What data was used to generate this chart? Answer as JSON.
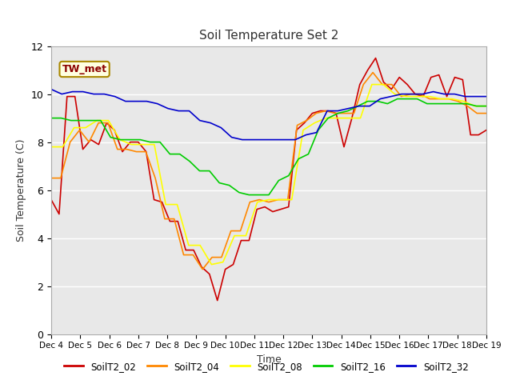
{
  "title": "Soil Temperature Set 2",
  "xlabel": "Time",
  "ylabel": "Soil Temperature (C)",
  "annotation": "TW_met",
  "ylim": [
    0,
    12
  ],
  "background_color": "#e8e8e8",
  "figure_color": "#ffffff",
  "series_colors": {
    "SoilT2_02": "#cc0000",
    "SoilT2_04": "#ff8800",
    "SoilT2_08": "#ffff00",
    "SoilT2_16": "#00cc00",
    "SoilT2_32": "#0000cc"
  },
  "x_ticks": [
    "Dec 4",
    "Dec 5",
    "Dec 6",
    "Dec 7",
    "Dec 8",
    "Dec 9",
    "Dec 10",
    "Dec 11",
    "Dec 12",
    "Dec 13",
    "Dec 14",
    "Dec 15",
    "Dec 16",
    "Dec 17",
    "Dec 18",
    "Dec 19"
  ],
  "series": {
    "SoilT2_02": [
      5.6,
      5.0,
      9.9,
      9.9,
      7.7,
      8.1,
      7.9,
      8.8,
      8.5,
      7.6,
      8.0,
      8.0,
      7.6,
      5.6,
      5.5,
      4.7,
      4.7,
      3.5,
      3.5,
      2.8,
      2.5,
      1.4,
      2.7,
      2.9,
      3.9,
      3.9,
      5.2,
      5.3,
      5.1,
      5.2,
      5.3,
      8.5,
      8.8,
      9.2,
      9.3,
      9.3,
      9.2,
      7.8,
      9.0,
      10.4,
      11.0,
      11.5,
      10.5,
      10.2,
      10.7,
      10.4,
      10.0,
      9.9,
      10.7,
      10.8,
      9.9,
      10.7,
      10.6,
      8.3,
      8.3,
      8.5
    ],
    "SoilT2_04": [
      6.5,
      6.5,
      8.0,
      8.5,
      8.0,
      8.8,
      8.8,
      7.7,
      7.7,
      7.6,
      7.6,
      6.5,
      4.8,
      4.8,
      3.3,
      3.3,
      2.7,
      3.2,
      3.2,
      4.3,
      4.3,
      5.5,
      5.6,
      5.5,
      5.6,
      5.6,
      8.7,
      8.9,
      9.2,
      9.3,
      9.2,
      9.2,
      9.2,
      10.4,
      10.9,
      10.4,
      10.4,
      9.9,
      10.0,
      10.0,
      9.8,
      9.8,
      9.8,
      9.7,
      9.5,
      9.2,
      9.2
    ],
    "SoilT2_08": [
      7.8,
      7.8,
      8.6,
      8.6,
      8.9,
      8.9,
      8.1,
      7.9,
      7.9,
      7.9,
      5.4,
      5.4,
      3.7,
      3.7,
      2.9,
      3.0,
      4.1,
      4.1,
      5.5,
      5.6,
      5.6,
      5.6,
      8.5,
      8.8,
      9.0,
      9.0,
      9.0,
      9.0,
      10.4,
      10.4,
      10.0,
      9.9,
      9.9,
      9.9,
      9.8,
      9.8,
      9.7,
      9.5,
      9.5
    ],
    "SoilT2_16": [
      9.0,
      9.0,
      8.9,
      8.9,
      8.9,
      8.9,
      8.2,
      8.1,
      8.1,
      8.1,
      8.0,
      8.0,
      7.5,
      7.5,
      7.2,
      6.8,
      6.8,
      6.3,
      6.2,
      5.9,
      5.8,
      5.8,
      5.8,
      6.4,
      6.6,
      7.3,
      7.5,
      8.5,
      9.0,
      9.2,
      9.3,
      9.5,
      9.7,
      9.7,
      9.6,
      9.8,
      9.8,
      9.8,
      9.6,
      9.6,
      9.6,
      9.6,
      9.6,
      9.5,
      9.5
    ],
    "SoilT2_32": [
      10.2,
      10.0,
      10.1,
      10.1,
      10.0,
      10.0,
      9.9,
      9.7,
      9.7,
      9.7,
      9.6,
      9.4,
      9.3,
      9.3,
      8.9,
      8.8,
      8.6,
      8.2,
      8.1,
      8.1,
      8.1,
      8.1,
      8.1,
      8.1,
      8.3,
      8.4,
      9.3,
      9.3,
      9.4,
      9.5,
      9.5,
      9.8,
      9.9,
      10.0,
      10.0,
      10.0,
      10.1,
      10.0,
      10.0,
      9.9,
      9.9,
      9.9
    ]
  }
}
